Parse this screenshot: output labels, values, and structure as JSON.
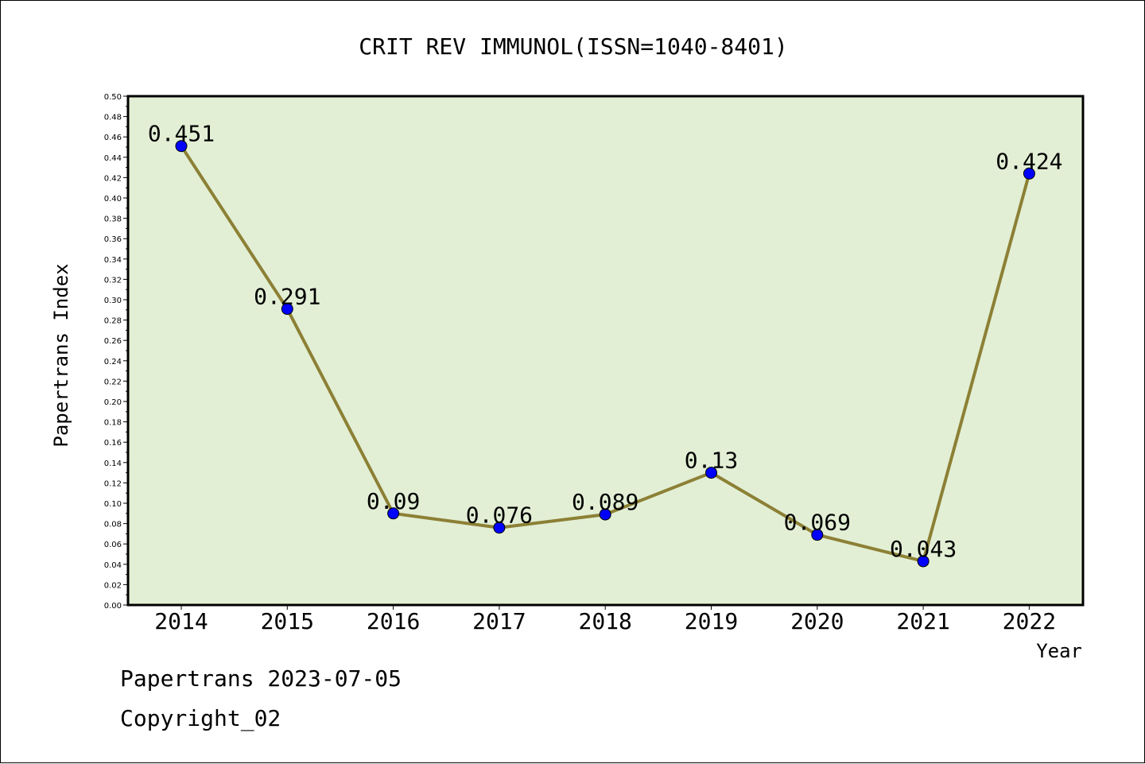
{
  "footer": {
    "line1": "Papertrans 2023-07-05",
    "line2": "Copyright_02"
  },
  "chart_data": {
    "type": "line",
    "title": "CRIT REV IMMUNOL(ISSN=1040-8401)",
    "xlabel": "Year",
    "ylabel": "Papertrans Index",
    "categories": [
      "2014",
      "2015",
      "2016",
      "2017",
      "2018",
      "2019",
      "2020",
      "2021",
      "2022"
    ],
    "values": [
      0.451,
      0.291,
      0.09,
      0.076,
      0.089,
      0.13,
      0.069,
      0.043,
      0.424
    ],
    "data_labels": [
      "0.451",
      "0.291",
      "0.09",
      "0.076",
      "0.089",
      "0.13",
      "0.069",
      "0.043",
      "0.424"
    ],
    "ylim": [
      0,
      0.5
    ],
    "ytick_labels": [
      "0.00",
      "0.02",
      "0.04",
      "0.06",
      "0.08",
      "0.10",
      "0.12",
      "0.14",
      "0.16",
      "0.18",
      "0.20",
      "0.22",
      "0.24",
      "0.26",
      "0.28",
      "0.30",
      "0.32",
      "0.34",
      "0.36",
      "0.38",
      "0.40",
      "0.42",
      "0.44",
      "0.46",
      "0.48",
      "0.50"
    ],
    "grid": false,
    "colors": {
      "plot_background": "#e2efd5",
      "line": "#8c8035",
      "marker": "#0000ff"
    }
  }
}
